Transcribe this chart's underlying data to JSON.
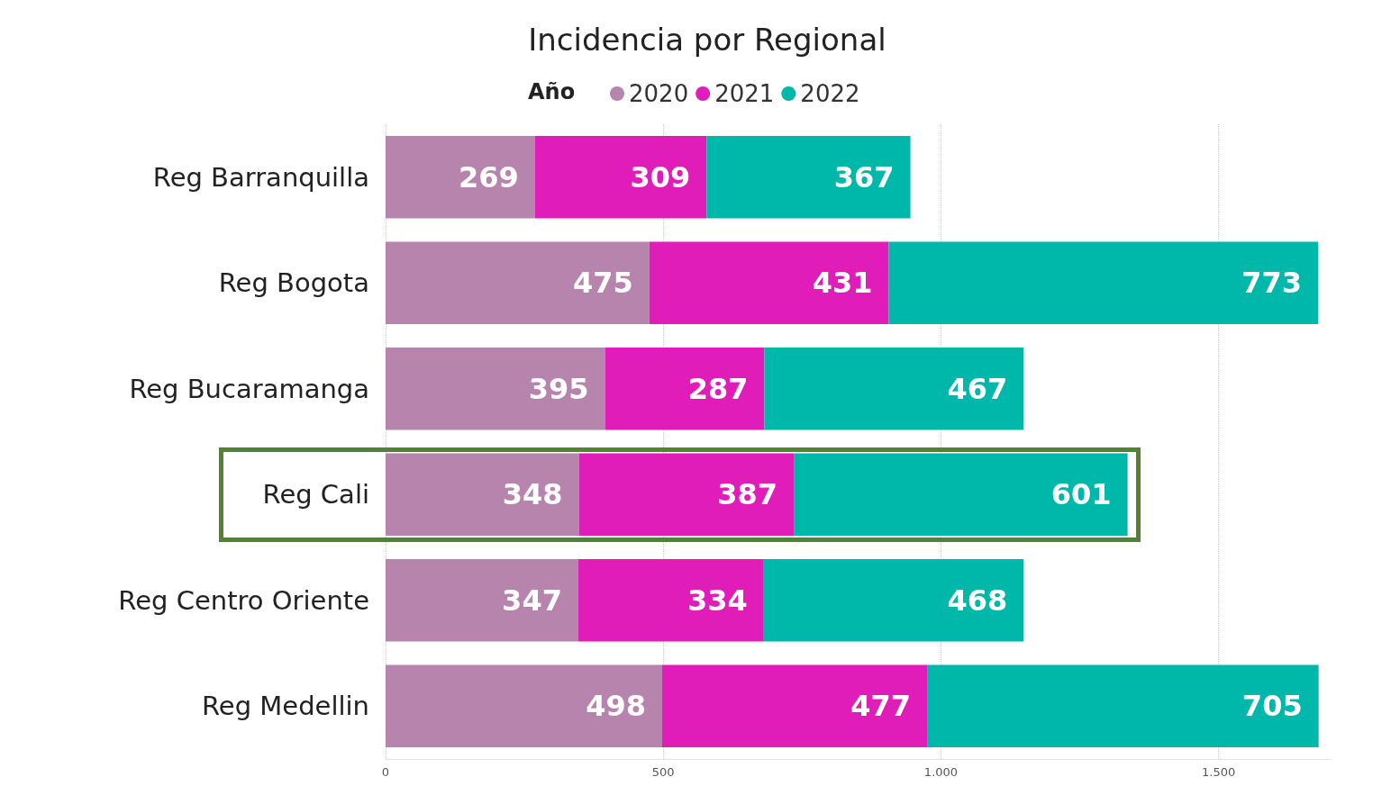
{
  "chart_data": {
    "type": "bar",
    "orientation": "horizontal",
    "stacked": true,
    "title": "Incidencia por Regional",
    "legend_title": "Año",
    "legend": "top",
    "grid": "x",
    "data_labels": true,
    "categories": [
      "Reg Barranquilla",
      "Reg Bogota",
      "Reg Bucaramanga",
      "Reg Cali",
      "Reg Centro Oriente",
      "Reg Medellin"
    ],
    "series": [
      {
        "name": "2020",
        "color": "#b784ad",
        "values": [
          269,
          475,
          395,
          348,
          347,
          498
        ]
      },
      {
        "name": "2021",
        "color": "#e01cb9",
        "values": [
          309,
          431,
          287,
          387,
          334,
          477
        ]
      },
      {
        "name": "2022",
        "color": "#00b8aa",
        "values": [
          367,
          773,
          467,
          601,
          468,
          705
        ]
      }
    ],
    "xlim": [
      0,
      1700
    ],
    "xticks": [
      0,
      500,
      {
        "value": 1000,
        "label": "1.000"
      },
      {
        "value": 1500,
        "label": "1.500"
      }
    ]
  }
}
